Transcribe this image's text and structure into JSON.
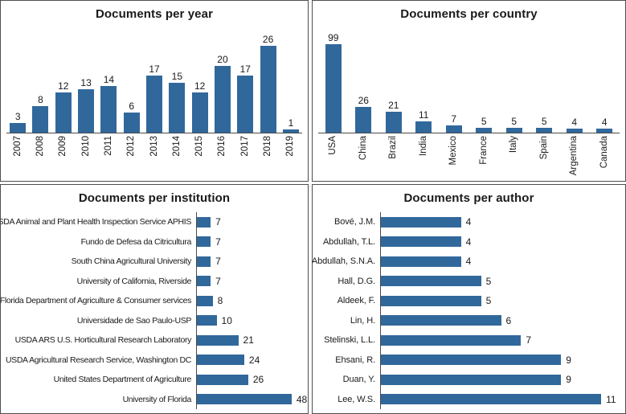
{
  "colors": {
    "bar": "#31689B",
    "axis": "#4A4A4A",
    "panel_border": "#4E4E4E",
    "text": "#1A1A1A"
  },
  "chart_data": [
    {
      "id": "year",
      "type": "bar",
      "orientation": "vertical",
      "title": "Documents per year",
      "categories": [
        "2007",
        "2008",
        "2009",
        "2010",
        "2011",
        "2012",
        "2013",
        "2014",
        "2015",
        "2016",
        "2017",
        "2018",
        "2019"
      ],
      "values": [
        3,
        8,
        12,
        13,
        14,
        6,
        17,
        15,
        12,
        20,
        17,
        26,
        1
      ],
      "ylim": [
        0,
        30
      ],
      "value_labels": true,
      "grid": false,
      "legend": false,
      "xlabel": "",
      "ylabel": ""
    },
    {
      "id": "country",
      "type": "bar",
      "orientation": "vertical",
      "title": "Documents per country",
      "categories": [
        "USA",
        "China",
        "Brazil",
        "India",
        "Mexico",
        "France",
        "Italy",
        "Spain",
        "Argentina",
        "Canada"
      ],
      "values": [
        99,
        26,
        21,
        11,
        7,
        5,
        5,
        5,
        4,
        4
      ],
      "ylim": [
        0,
        100
      ],
      "value_labels": true,
      "grid": false,
      "legend": false,
      "xlabel": "",
      "ylabel": ""
    },
    {
      "id": "institution",
      "type": "bar",
      "orientation": "horizontal",
      "title": "Documents per institution",
      "categories": [
        "USDA Animal and Plant Health Inspection Service APHIS",
        "Fundo de Defesa da Citricultura",
        "South China Agricultural University",
        "University of California, Riverside",
        "Florida Department of Agriculture & Consumer services",
        "Universidade de Sao Paulo-USP",
        "USDA ARS U.S. Horticultural Research Laboratory",
        "USDA Agricultural Research Service, Washington DC",
        "United States Department of Agriculture",
        "University of Florida"
      ],
      "values": [
        7,
        7,
        7,
        7,
        8,
        10,
        21,
        24,
        26,
        48
      ],
      "xlim": [
        0,
        55
      ],
      "value_labels": true,
      "grid": false,
      "legend": false,
      "xlabel": "",
      "ylabel": ""
    },
    {
      "id": "author",
      "type": "bar",
      "orientation": "horizontal",
      "title": "Documents per author",
      "categories": [
        "Bové, J.M.",
        "Abdullah, T.L.",
        "Abdullah, S.N.A.",
        "Hall, D.G.",
        "Aldeek, F.",
        "Lin, H.",
        "Stelinski, L.L.",
        "Ehsani, R.",
        "Duan, Y.",
        "Lee, W.S."
      ],
      "values": [
        4,
        4,
        4,
        5,
        5,
        6,
        7,
        9,
        9,
        11
      ],
      "xlim": [
        0,
        12
      ],
      "value_labels": true,
      "grid": false,
      "legend": false,
      "xlabel": "",
      "ylabel": ""
    }
  ]
}
